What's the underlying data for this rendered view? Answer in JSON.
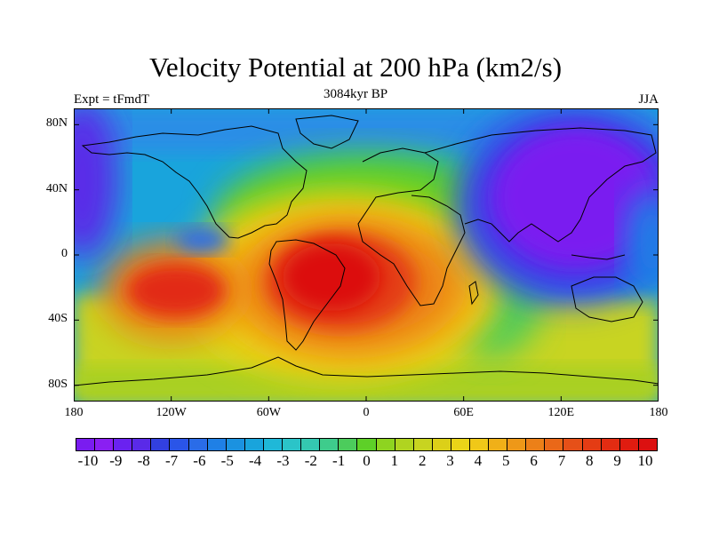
{
  "title": "Velocity Potential at 200 hPa (km2/s)",
  "left_label": "Expt = tFmdT",
  "center_label": "3084kyr BP",
  "right_label": "JJA",
  "lat_ticks": [
    {
      "text": "80N",
      "lat": 80
    },
    {
      "text": "40N",
      "lat": 40
    },
    {
      "text": "0",
      "lat": 0
    },
    {
      "text": "40S",
      "lat": -40
    },
    {
      "text": "80S",
      "lat": -80
    }
  ],
  "lon_ticks": [
    {
      "text": "180",
      "lon": -180
    },
    {
      "text": "120W",
      "lon": -120
    },
    {
      "text": "60W",
      "lon": -60
    },
    {
      "text": "0",
      "lon": 0
    },
    {
      "text": "60E",
      "lon": 60
    },
    {
      "text": "120E",
      "lon": 120
    },
    {
      "text": "180",
      "lon": 180
    }
  ],
  "colorbar": {
    "labels": [
      "-10",
      "-9",
      "-8",
      "-7",
      "-6",
      "-5",
      "-4",
      "-3",
      "-2",
      "-1",
      "0",
      "1",
      "2",
      "3",
      "4",
      "5",
      "6",
      "7",
      "8",
      "9",
      "10"
    ],
    "colors": [
      "#7a1cf0",
      "#8a1ff2",
      "#6a22f0",
      "#5a2ae8",
      "#3240e0",
      "#2a55e8",
      "#2a6ce8",
      "#1f80e6",
      "#1b92e0",
      "#19a4dc",
      "#1fb8d8",
      "#2bc4c8",
      "#34c8b0",
      "#3ecc8c",
      "#4ccc5c",
      "#5ed028",
      "#8ed420",
      "#b0d420",
      "#c8d420",
      "#dcd018",
      "#ead418",
      "#f0c818",
      "#f0b018",
      "#ee9818",
      "#ec8018",
      "#ea6818",
      "#e65018",
      "#e43c14",
      "#e22c12",
      "#e01c10",
      "#dc1010"
    ]
  },
  "chart_data": {
    "type": "heatmap",
    "title": "Velocity Potential at 200 hPa (km2/s)",
    "projection": "cylindrical-equidistant",
    "xlim": [
      -180,
      180
    ],
    "ylim": [
      -90,
      90
    ],
    "levels": [
      -10,
      -9,
      -8,
      -7,
      -6,
      -5,
      -4,
      -3,
      -2,
      -1,
      0,
      1,
      2,
      3,
      4,
      5,
      6,
      7,
      8,
      9,
      10
    ],
    "field_centers": [
      {
        "lon": -20,
        "lat": -15,
        "value": 10
      },
      {
        "lon": -115,
        "lat": -25,
        "value": 9
      },
      {
        "lon": 125,
        "lat": 20,
        "value": -10
      },
      {
        "lon": -100,
        "lat": 10,
        "value": -3
      }
    ]
  }
}
